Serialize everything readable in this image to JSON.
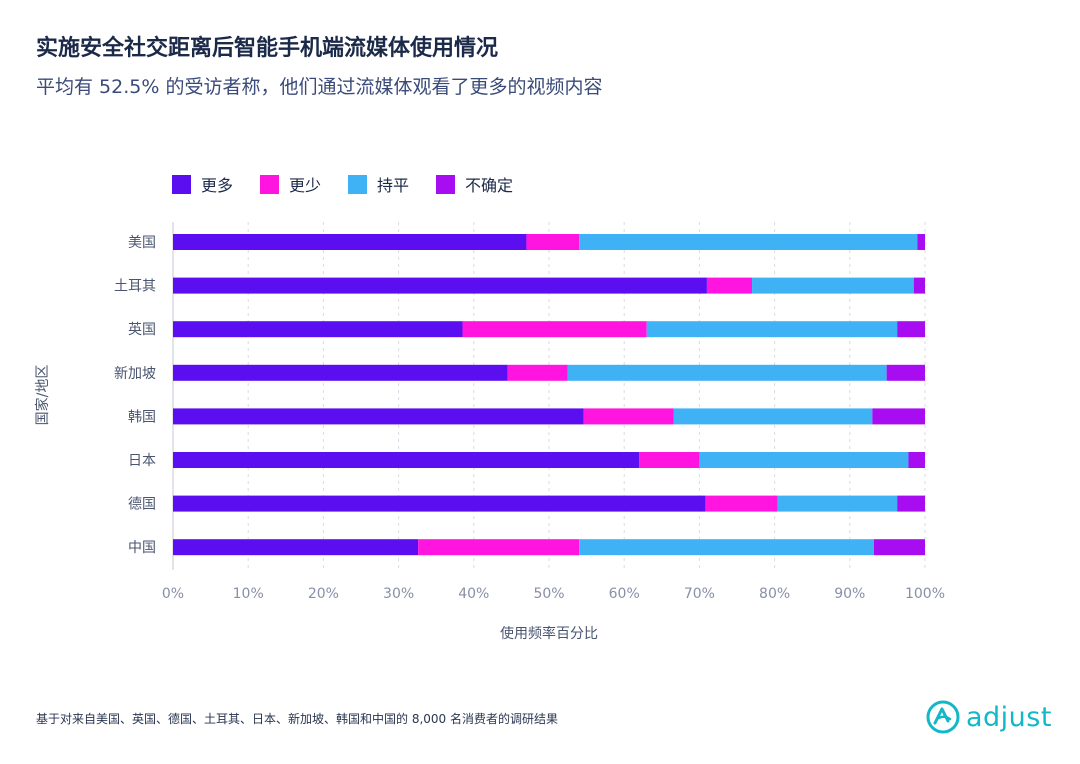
{
  "header": {
    "title": "实施安全社交距离后智能手机端流媒体使用情况",
    "subtitle": "平均有 52.5% 的受访者称，他们通过流媒体观看了更多的视频内容"
  },
  "footnote": "基于对来自美国、英国、德国、土耳其、日本、新加坡、韩国和中国的 8,000 名消费者的调研结果",
  "logo": {
    "text": "adjust",
    "color": "#12b8c8"
  },
  "chart_data": {
    "type": "bar",
    "orientation": "horizontal",
    "stacked": true,
    "categories": [
      "美国",
      "土耳其",
      "英国",
      "新加坡",
      "韩国",
      "日本",
      "德国",
      "中国"
    ],
    "series": [
      {
        "name": "更多",
        "color": "#5b0ff0",
        "values": [
          47,
          71,
          38.5,
          44.5,
          54.6,
          62,
          70.8,
          32.6
        ]
      },
      {
        "name": "更少",
        "color": "#ff14e0",
        "values": [
          7,
          6,
          24.5,
          8,
          12,
          8,
          9.6,
          21.4
        ]
      },
      {
        "name": "持平",
        "color": "#3fb2f6",
        "values": [
          45,
          21.5,
          33.3,
          42.4,
          26.4,
          27.8,
          15.9,
          39.2
        ]
      },
      {
        "name": "不确定",
        "color": "#a80cf0",
        "values": [
          1,
          1.5,
          3.7,
          5.1,
          7,
          2.2,
          3.7,
          6.8
        ]
      }
    ],
    "xlabel": "使用频率百分比",
    "ylabel": "国家/地区",
    "xlim": [
      0,
      100
    ],
    "xticks": [
      "0%",
      "10%",
      "20%",
      "30%",
      "40%",
      "50%",
      "60%",
      "70%",
      "80%",
      "90%",
      "100%"
    ],
    "grid": "vertical dashed",
    "legend": "top"
  }
}
